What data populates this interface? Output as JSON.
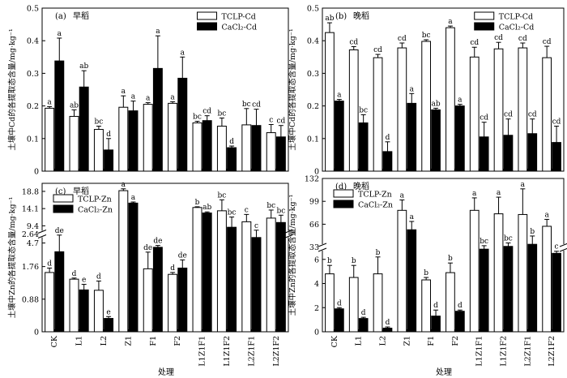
{
  "chart_data": [
    {
      "panel": "a",
      "type": "bar",
      "title_letter": "(a)",
      "title_text": "早稻",
      "ylabel": "土壤中Cd的各提取态含量/mg·kg⁻¹",
      "ylim": [
        0,
        0.5
      ],
      "yticks": [
        "0",
        "0.1",
        "0.2",
        "0.3",
        "0.4",
        "0.5"
      ],
      "legend_placement": "top-right",
      "categories": [
        "CK",
        "L1",
        "L2",
        "Z1",
        "F1",
        "F2",
        "L1Z1F1",
        "L1Z1F2",
        "L2Z1F1",
        "L2Z1F2"
      ],
      "series": [
        {
          "name": "TCLP-Cd",
          "fill": "#ffffff",
          "values": [
            0.193,
            0.168,
            0.128,
            0.196,
            0.205,
            0.208,
            0.148,
            0.138,
            0.142,
            0.118
          ],
          "errors": [
            0.005,
            0.02,
            0.01,
            0.035,
            0.005,
            0.005,
            0.005,
            0.025,
            0.05,
            0.025
          ],
          "labels": [
            "a",
            "ab",
            "bc",
            "a",
            "a",
            "a",
            "bc",
            "bc",
            "bc",
            "c"
          ]
        },
        {
          "name": "CaCl₂-Cd",
          "fill": "#000000",
          "values": [
            0.338,
            0.258,
            0.065,
            0.185,
            0.315,
            0.285,
            0.155,
            0.072,
            0.14,
            0.105
          ],
          "errors": [
            0.07,
            0.05,
            0.035,
            0.03,
            0.1,
            0.065,
            0.015,
            0.005,
            0.05,
            0.035
          ],
          "labels": [
            "a",
            "ab",
            "d",
            "a",
            "a",
            "a",
            "cd",
            "d",
            "cd",
            "cd"
          ]
        }
      ]
    },
    {
      "panel": "b",
      "type": "bar",
      "title_letter": "(b)",
      "title_text": "晚稻",
      "ylabel": "土壤中Cd的各提取态含量/mg·kg⁻¹",
      "ylim": [
        0,
        0.5
      ],
      "yticks": [
        "0",
        "0.1",
        "0.2",
        "0.3",
        "0.4",
        "0.5"
      ],
      "legend_placement": "top-right",
      "categories": [
        "CK",
        "L1",
        "L2",
        "Z1",
        "F1",
        "F2",
        "L1Z1F1",
        "L1Z1F2",
        "L2Z1F1",
        "L2Z1F2"
      ],
      "series": [
        {
          "name": "TCLP-Cd",
          "fill": "#ffffff",
          "values": [
            0.425,
            0.372,
            0.348,
            0.378,
            0.398,
            0.44,
            0.35,
            0.375,
            0.378,
            0.348
          ],
          "errors": [
            0.03,
            0.01,
            0.01,
            0.015,
            0.005,
            0.005,
            0.03,
            0.02,
            0.015,
            0.035
          ],
          "labels": [
            "ab",
            "cd",
            "cd",
            "cd",
            "bc",
            "a",
            "cd",
            "cd",
            "cd",
            "cd"
          ]
        },
        {
          "name": "CaCl₂-Cd",
          "fill": "#000000",
          "values": [
            0.215,
            0.148,
            0.06,
            0.208,
            0.188,
            0.2,
            0.105,
            0.11,
            0.115,
            0.088
          ],
          "errors": [
            0.005,
            0.025,
            0.03,
            0.03,
            0.005,
            0.005,
            0.045,
            0.05,
            0.045,
            0.05
          ],
          "labels": [
            "a",
            "bc",
            "d",
            "a",
            "ab",
            "a",
            "cd",
            "cd",
            "cd",
            "cd"
          ]
        }
      ]
    },
    {
      "panel": "c",
      "type": "bar",
      "axis_break": true,
      "title_letter": "(c)",
      "title_text": "早稻",
      "ylabel": "土壤中Zn的各提取态含量/mg·kg⁻¹",
      "ylim_lower": [
        0,
        3.0
      ],
      "ylim_upper": [
        3.5,
        21
      ],
      "yticks_lower": [
        "0",
        "0.88",
        "1.76",
        "2.64"
      ],
      "yticks_upper": [
        "4.7",
        "9.4",
        "14.1",
        "18.8"
      ],
      "legend_placement": "top-left",
      "categories": [
        "CK",
        "L1",
        "L2",
        "Z1",
        "F1",
        "F2",
        "L1Z1F1",
        "L1Z1F2",
        "L2Z1F1",
        "L2Z1F2"
      ],
      "series": [
        {
          "name": "TCLP-Zn",
          "fill": "#ffffff",
          "values": [
            1.6,
            1.42,
            1.12,
            19.0,
            1.7,
            1.55,
            14.4,
            13.5,
            10.5,
            11.5
          ],
          "errors": [
            0.12,
            0.03,
            0.25,
            0.5,
            0.45,
            0.05,
            0.2,
            3.0,
            2.0,
            2.2
          ],
          "labels": [
            "d",
            "d",
            "d",
            "a",
            "de",
            "d",
            "b",
            "bc",
            "c",
            "bc"
          ]
        },
        {
          "name": "CaCl₂-Zn",
          "fill": "#000000",
          "values": [
            2.16,
            1.13,
            0.36,
            15.6,
            2.28,
            1.72,
            12.9,
            9.0,
            6.2,
            10.3
          ],
          "errors": [
            0.45,
            0.15,
            0.05,
            0.3,
            0.05,
            0.22,
            0.3,
            2.8,
            2.0,
            2.0
          ],
          "labels": [
            "de",
            "e",
            "e",
            "a",
            "de",
            "de",
            "ab",
            "bc",
            "c",
            "bc"
          ]
        }
      ]
    },
    {
      "panel": "d",
      "type": "bar",
      "axis_break": true,
      "title_letter": "(d)",
      "title_text": "晚稻",
      "ylabel": "土壤中Zn的各提取态含量/mg·kg⁻¹",
      "ylim_lower": [
        0,
        8
      ],
      "ylim_upper": [
        15,
        132
      ],
      "yticks_lower": [
        "0",
        "2",
        "4",
        "6"
      ],
      "yticks_upper": [
        "33",
        "66",
        "99",
        "132"
      ],
      "legend_placement": "top-left",
      "categories": [
        "CK",
        "L1",
        "L2",
        "Z1",
        "F1",
        "F2",
        "L1Z1F1",
        "L1Z1F2",
        "L2Z1F1",
        "L2Z1F2"
      ],
      "series": [
        {
          "name": "TCLP-Zn",
          "fill": "#ffffff",
          "values": [
            4.8,
            4.5,
            4.8,
            86,
            4.3,
            4.9,
            86,
            81,
            80,
            63
          ],
          "errors": [
            0.7,
            1.0,
            1.4,
            15,
            0.2,
            0.8,
            18,
            24,
            37,
            10
          ],
          "labels": [
            "b",
            "b",
            "b",
            "a",
            "b",
            "b",
            "a",
            "a",
            "a",
            "a"
          ]
        },
        {
          "name": "CaCl₂-Zn",
          "fill": "#000000",
          "values": [
            1.9,
            1.1,
            0.3,
            58,
            1.3,
            1.7,
            30,
            34,
            37,
            24
          ],
          "errors": [
            0.1,
            0.1,
            0.1,
            12,
            0.5,
            0.1,
            5,
            5,
            12,
            3
          ],
          "labels": [
            "d",
            "d",
            "d",
            "a",
            "d",
            "d",
            "bc",
            "bc",
            "b",
            "c"
          ]
        }
      ]
    }
  ],
  "xlabel": "处理"
}
